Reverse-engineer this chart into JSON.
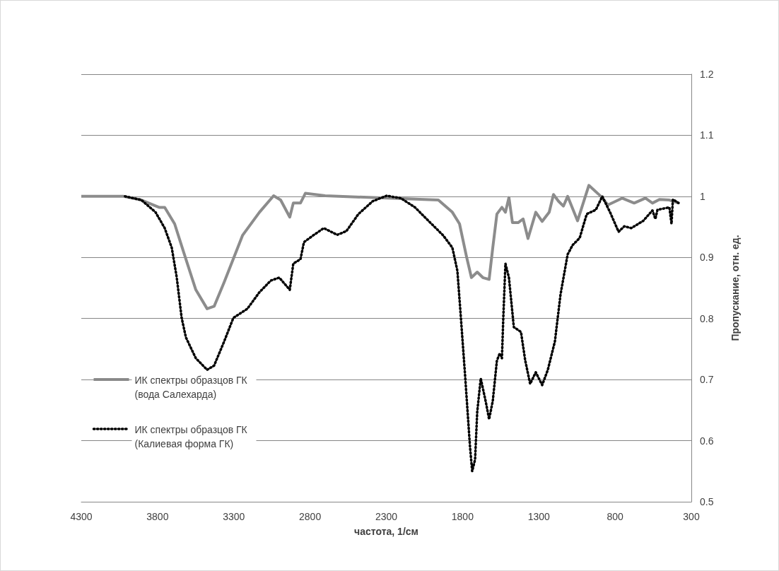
{
  "chart_data": {
    "type": "line",
    "xlabel": "частота, 1/см",
    "ylabel": "Пропускание, отн. ед.",
    "xlim": [
      4300,
      300
    ],
    "xticks": [
      4300,
      3800,
      3300,
      2800,
      2300,
      1800,
      1300,
      800,
      300
    ],
    "ylim": [
      0.5,
      1.2
    ],
    "yticks": [
      0.5,
      0.6,
      0.7,
      0.8,
      0.9,
      1,
      1.1,
      1.2
    ],
    "grid": "y",
    "legend": "left",
    "marker": "none",
    "series": [
      {
        "name": "ИК спектры образцов ГК\n(вода Салехарда)",
        "color": "#8c8c8c",
        "line_style": "solid",
        "x": [
          4300,
          4022,
          3906,
          3790,
          3753,
          3688,
          3628,
          3549,
          3475,
          3429,
          3364,
          3243,
          3132,
          3039,
          2993,
          2933,
          2910,
          2863,
          2831,
          2701,
          1959,
          1867,
          1820,
          1774,
          1742,
          1704,
          1667,
          1626,
          1602,
          1575,
          1542,
          1519,
          1496,
          1473,
          1436,
          1403,
          1371,
          1320,
          1278,
          1232,
          1204,
          1171,
          1139,
          1111,
          1046,
          972,
          893,
          847,
          754,
          675,
          601,
          555,
          509,
          444,
          383
        ],
        "values": [
          1,
          1,
          0.994,
          0.982,
          0.982,
          0.955,
          0.908,
          0.847,
          0.816,
          0.82,
          0.859,
          0.936,
          0.974,
          1.001,
          0.994,
          0.966,
          0.989,
          0.989,
          1.005,
          1.001,
          0.994,
          0.974,
          0.955,
          0.901,
          0.867,
          0.876,
          0.867,
          0.864,
          0.916,
          0.971,
          0.982,
          0.974,
          0.998,
          0.957,
          0.957,
          0.963,
          0.931,
          0.974,
          0.959,
          0.974,
          1.003,
          0.992,
          0.984,
          1,
          0.96,
          1.018,
          1,
          0.986,
          0.997,
          0.989,
          0.997,
          0.989,
          0.995,
          0.994,
          0.989
        ]
      },
      {
        "name": "ИК спектры образцов ГК\n(Калиевая форма ГК)",
        "color": "#000000",
        "line_style": "dotted",
        "x": [
          4013,
          3906,
          3813,
          3753,
          3707,
          3674,
          3642,
          3614,
          3549,
          3475,
          3429,
          3364,
          3303,
          3211,
          3132,
          3058,
          3002,
          2933,
          2910,
          2863,
          2840,
          2780,
          2710,
          2622,
          2562,
          2483,
          2390,
          2298,
          2205,
          2112,
          2020,
          1927,
          1867,
          1834,
          1811,
          1783,
          1751,
          1737,
          1718,
          1704,
          1681,
          1649,
          1626,
          1602,
          1575,
          1556,
          1542,
          1533,
          1519,
          1496,
          1464,
          1417,
          1389,
          1357,
          1320,
          1278,
          1241,
          1195,
          1158,
          1111,
          1079,
          1032,
          986,
          926,
          884,
          833,
          777,
          740,
          694,
          615,
          555,
          536,
          522,
          444,
          430,
          421,
          383
        ],
        "values": [
          1,
          0.994,
          0.974,
          0.948,
          0.916,
          0.867,
          0.801,
          0.769,
          0.735,
          0.716,
          0.723,
          0.762,
          0.801,
          0.816,
          0.843,
          0.862,
          0.867,
          0.847,
          0.89,
          0.897,
          0.925,
          0.936,
          0.948,
          0.937,
          0.943,
          0.971,
          0.992,
          1.001,
          0.997,
          0.982,
          0.959,
          0.936,
          0.916,
          0.878,
          0.801,
          0.705,
          0.589,
          0.55,
          0.569,
          0.647,
          0.702,
          0.665,
          0.635,
          0.665,
          0.731,
          0.743,
          0.735,
          0.801,
          0.89,
          0.867,
          0.786,
          0.778,
          0.731,
          0.693,
          0.712,
          0.691,
          0.716,
          0.762,
          0.839,
          0.905,
          0.92,
          0.932,
          0.971,
          0.978,
          1,
          0.974,
          0.942,
          0.951,
          0.948,
          0.96,
          0.977,
          0.963,
          0.978,
          0.982,
          0.955,
          0.995,
          0.989
        ]
      }
    ]
  }
}
